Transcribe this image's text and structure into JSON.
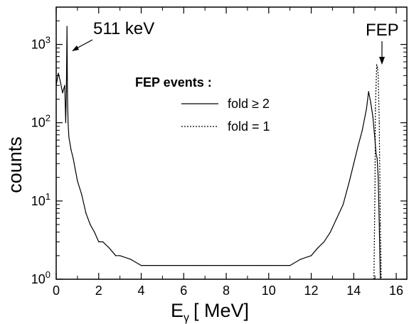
{
  "chart_data": {
    "type": "line",
    "xlabel_main": "E",
    "xlabel_sub": "γ",
    "xlabel_unit": "[ MeV]",
    "ylabel": "counts",
    "xlim": [
      0,
      16.5
    ],
    "ylim": [
      1,
      3000
    ],
    "yscale": "log",
    "x_ticks": [
      0,
      2,
      4,
      6,
      8,
      10,
      12,
      14,
      16
    ],
    "y_ticks": [
      {
        "value": 1,
        "base": "10",
        "exp": "0"
      },
      {
        "value": 10,
        "base": "10",
        "exp": "1"
      },
      {
        "value": 100,
        "base": "10",
        "exp": "2"
      },
      {
        "value": 1000,
        "base": "10",
        "exp": "3"
      }
    ],
    "grid": false,
    "annotations": {
      "peak_511": {
        "text": "511 keV",
        "x": 0.511,
        "y": 1700
      },
      "fep": {
        "text": "FEP",
        "x": 15.1,
        "y": 600
      }
    },
    "legend": {
      "title": "FEP events :",
      "placement": "center-top",
      "entries": [
        {
          "label": "fold ≥ 2",
          "style": "solid"
        },
        {
          "label": "fold = 1",
          "style": "dotted"
        }
      ]
    },
    "series": [
      {
        "name": "fold ≥ 2",
        "style": "solid",
        "x": [
          0.0,
          0.1,
          0.2,
          0.3,
          0.4,
          0.45,
          0.48,
          0.51,
          0.53,
          0.56,
          0.6,
          0.7,
          0.8,
          0.9,
          1.0,
          1.2,
          1.4,
          1.6,
          1.8,
          2.0,
          2.2,
          2.5,
          2.8,
          3.0,
          3.5,
          4.0,
          4.5,
          5.0,
          5.5,
          6.0,
          6.5,
          7.0,
          7.5,
          8.0,
          8.5,
          9.0,
          9.5,
          10.0,
          10.5,
          11.0,
          11.5,
          12.0,
          12.3,
          12.6,
          12.9,
          13.2,
          13.5,
          13.8,
          14.0,
          14.2,
          14.4,
          14.6,
          14.7,
          14.8,
          14.9,
          15.0,
          15.05,
          15.1,
          15.15,
          15.2,
          15.25
        ],
        "y": [
          300,
          430,
          330,
          240,
          300,
          100,
          250,
          1700,
          250,
          100,
          65,
          45,
          35,
          25,
          18,
          12,
          7,
          5,
          4,
          3,
          3,
          2.5,
          2,
          2,
          1.8,
          1.5,
          1.5,
          1.5,
          1.5,
          1.5,
          1.5,
          1.5,
          1.5,
          1.5,
          1.5,
          1.5,
          1.5,
          1.5,
          1.5,
          1.5,
          1.8,
          2,
          2.5,
          3,
          4,
          6,
          9,
          18,
          30,
          50,
          80,
          150,
          250,
          180,
          120,
          60,
          40,
          35,
          20,
          5,
          1
        ]
      },
      {
        "name": "fold = 1",
        "style": "dotted",
        "x": [
          14.95,
          15.0,
          15.02,
          15.05,
          15.08,
          15.12,
          15.15,
          15.2,
          15.25,
          15.3
        ],
        "y": [
          1,
          15,
          150,
          300,
          550,
          500,
          400,
          100,
          5,
          1
        ]
      }
    ]
  }
}
